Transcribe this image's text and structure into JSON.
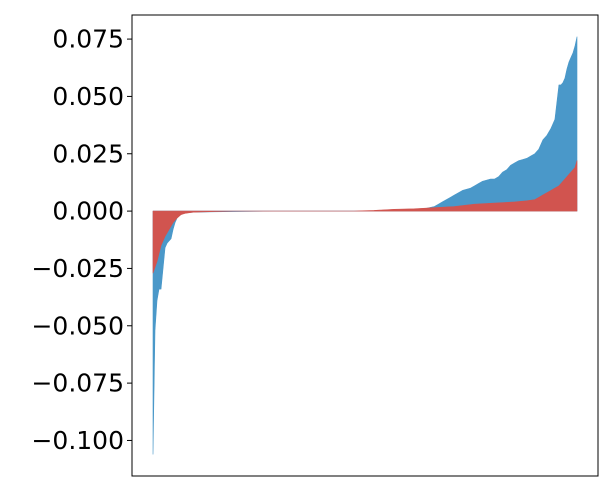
{
  "chart_data": {
    "type": "area",
    "title": "",
    "xlabel": "",
    "ylabel": "",
    "x_ticks_visible": false,
    "grid": false,
    "legend": "none",
    "ylim": [
      -0.1155,
      0.0855
    ],
    "yticks": [
      {
        "value": 0.075,
        "label": "0.075"
      },
      {
        "value": 0.05,
        "label": "0.050"
      },
      {
        "value": 0.025,
        "label": "0.025"
      },
      {
        "value": 0.0,
        "label": "0.000"
      },
      {
        "value": -0.025,
        "label": "−0.025"
      },
      {
        "value": -0.05,
        "label": "−0.050"
      },
      {
        "value": -0.075,
        "label": "−0.075"
      },
      {
        "value": -0.1,
        "label": "−0.100"
      }
    ],
    "series": [
      {
        "color": "#4a98c9",
        "x": [
          0,
          1,
          2,
          3,
          4,
          5,
          6,
          7,
          8,
          9,
          10,
          11,
          12,
          13,
          14,
          15,
          16,
          20,
          30,
          40,
          50,
          60,
          70,
          80,
          90,
          100,
          110,
          120,
          130,
          135,
          140,
          142,
          144,
          146,
          148,
          150,
          152,
          154,
          156,
          158,
          160,
          162,
          164,
          166,
          168,
          170,
          172,
          174,
          176,
          178,
          180,
          182,
          184,
          186,
          188,
          190,
          192,
          194,
          196,
          198,
          200,
          202,
          203,
          204,
          205,
          206,
          207,
          208,
          209,
          210,
          211
        ],
        "values": [
          -0.106,
          -0.052,
          -0.039,
          -0.034,
          -0.034,
          -0.025,
          -0.016,
          -0.014,
          -0.013,
          -0.012,
          -0.008,
          -0.005,
          -0.003,
          -0.002,
          -0.0015,
          -0.001,
          -0.0008,
          -0.0005,
          -0.0003,
          -0.0002,
          -0.0001,
          0.0,
          0.0,
          0.0,
          0.0,
          0.0,
          0.0,
          0.0002,
          0.0005,
          0.001,
          0.002,
          0.003,
          0.004,
          0.005,
          0.006,
          0.007,
          0.008,
          0.009,
          0.0095,
          0.01,
          0.011,
          0.012,
          0.013,
          0.0135,
          0.014,
          0.014,
          0.015,
          0.017,
          0.018,
          0.02,
          0.021,
          0.022,
          0.0225,
          0.023,
          0.024,
          0.025,
          0.027,
          0.031,
          0.033,
          0.036,
          0.04,
          0.055,
          0.055,
          0.056,
          0.058,
          0.062,
          0.065,
          0.067,
          0.069,
          0.072,
          0.076
        ]
      },
      {
        "color": "#d1544f",
        "x": [
          0,
          2,
          4,
          6,
          8,
          10,
          12,
          14,
          16,
          20,
          30,
          40,
          60,
          80,
          100,
          110,
          120,
          130,
          140,
          150,
          160,
          170,
          180,
          186,
          190,
          192,
          194,
          196,
          198,
          200,
          202,
          204,
          206,
          208,
          210,
          211
        ],
        "values": [
          -0.027,
          -0.022,
          -0.015,
          -0.011,
          -0.008,
          -0.005,
          -0.003,
          -0.0015,
          -0.001,
          -0.0005,
          -0.0002,
          0.0,
          0.0,
          0.0,
          0.0,
          0.0003,
          0.0008,
          0.001,
          0.0015,
          0.002,
          0.003,
          0.0035,
          0.004,
          0.0045,
          0.005,
          0.006,
          0.007,
          0.008,
          0.009,
          0.01,
          0.011,
          0.013,
          0.015,
          0.017,
          0.019,
          0.022
        ]
      }
    ]
  }
}
